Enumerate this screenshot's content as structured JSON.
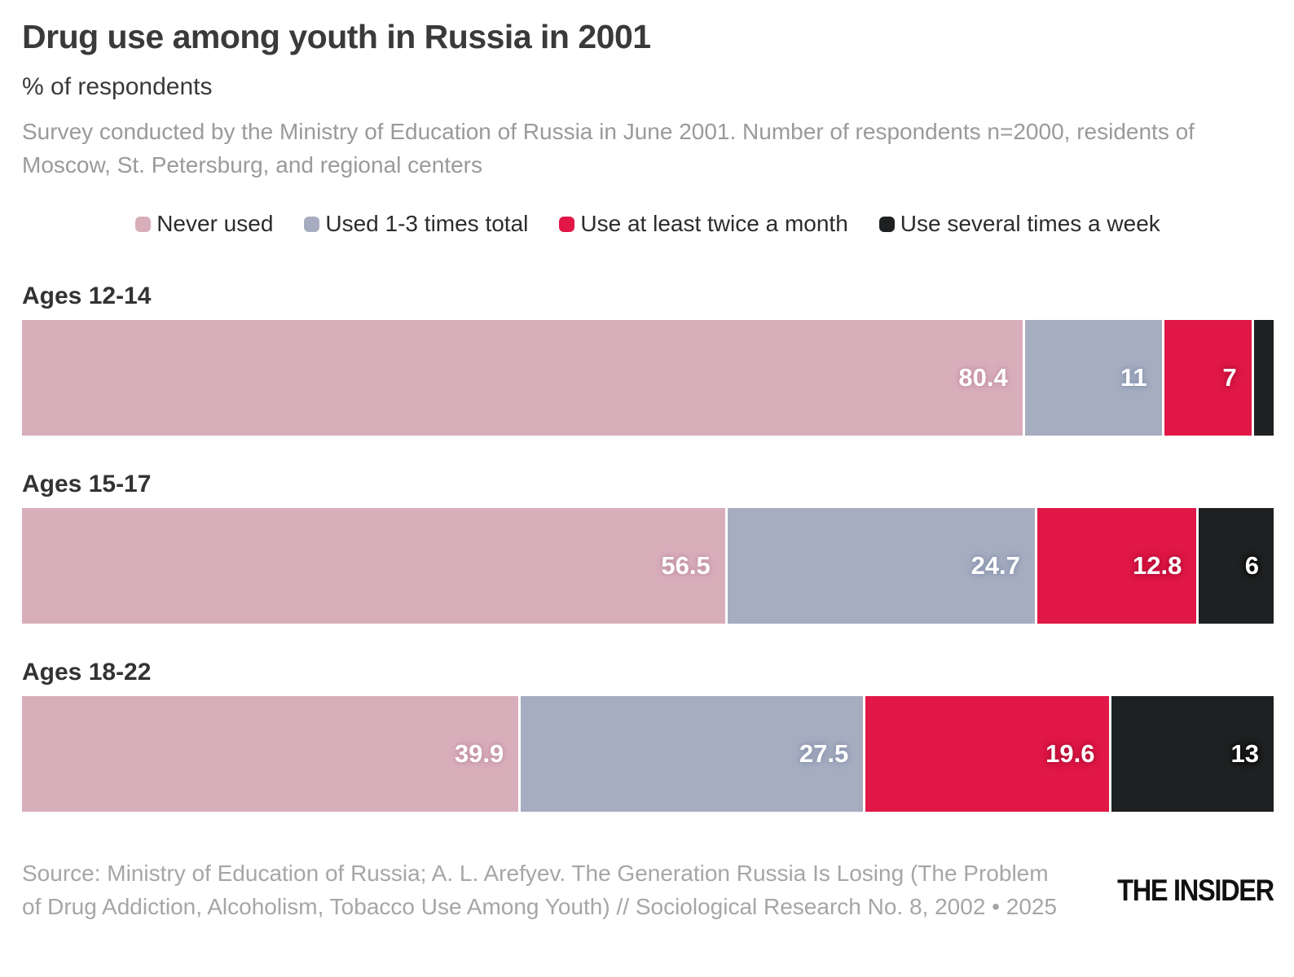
{
  "header": {
    "title": "Drug use among youth in Russia in 2001",
    "subtitle": "% of respondents",
    "description": "Survey conducted by the Ministry of Education of Russia in June 2001. Number of respondents n=2000, residents of Moscow, St. Petersburg, and regional centers"
  },
  "chart_data": {
    "type": "bar",
    "orientation": "horizontal",
    "stacked": true,
    "xlim": [
      0,
      100
    ],
    "grid": false,
    "legend_position": "top-center",
    "categories": [
      "Ages 12-14",
      "Ages 15-17",
      "Ages 18-22"
    ],
    "series": [
      {
        "name": "Never used",
        "color": "#d9aebb",
        "label_halo": "#c08fa0",
        "values": [
          80.4,
          56.5,
          39.9
        ],
        "labels": [
          "80.4",
          "56.5",
          "39.9"
        ]
      },
      {
        "name": "Used 1-3 times total",
        "color": "#a6adc0",
        "label_halo": "#8490ab",
        "values": [
          11,
          24.7,
          27.5
        ],
        "labels": [
          "11",
          "24.7",
          "27.5"
        ]
      },
      {
        "name": "Use at least twice a month",
        "color": "#e01747",
        "label_halo": "#ad0c33",
        "values": [
          7,
          12.8,
          19.6
        ],
        "labels": [
          "7",
          "12.8",
          "19.6"
        ]
      },
      {
        "name": "Use several times a week",
        "color": "#1e2021",
        "label_halo": "#000000",
        "values": [
          1.6,
          6,
          13
        ],
        "labels": [
          "",
          "6",
          "13"
        ]
      }
    ]
  },
  "footer": {
    "source": "Source: Ministry of Education of Russia; A. L. Arefyev. The Generation Russia Is Losing (The Problem of Drug Addiction, Alcoholism, Tobacco Use Among Youth) // Sociological Research No. 8, 2002 • 2025",
    "logo": "THE INSIDER"
  }
}
